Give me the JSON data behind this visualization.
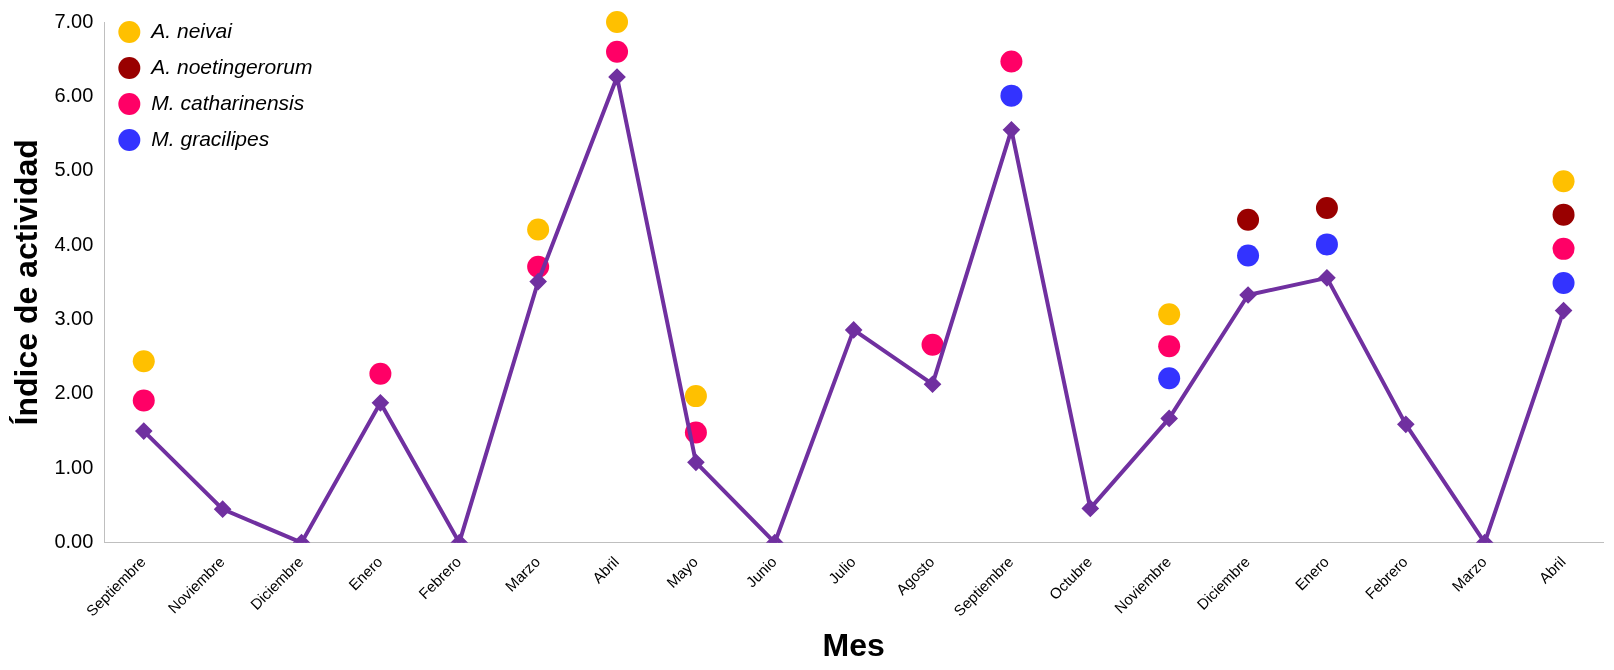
{
  "chart_data": {
    "type": "line",
    "xlabel": "Mes",
    "ylabel": "Índice de actividad",
    "categories": [
      "Septiembre",
      "Noviembre",
      "Diciembre",
      "Enero",
      "Febrero",
      "Marzo",
      "Abril",
      "Mayo",
      "Junio",
      "Julio",
      "Agosto",
      "Septiembre",
      "Octubre",
      "Noviembre",
      "Diciembre",
      "Enero",
      "Febrero",
      "Marzo",
      "Abril"
    ],
    "ylim": [
      0,
      7
    ],
    "yticks": [
      {
        "value": 0,
        "label": "0.00"
      },
      {
        "value": 1,
        "label": "1.00"
      },
      {
        "value": 2,
        "label": "2.00"
      },
      {
        "value": 3,
        "label": "3.00"
      },
      {
        "value": 4,
        "label": "4.00"
      },
      {
        "value": 5,
        "label": "5.00"
      },
      {
        "value": 6,
        "label": "6.00"
      },
      {
        "value": 7,
        "label": "7.00"
      }
    ],
    "grid": false,
    "legend": "top left",
    "line_style": "solid",
    "series": [
      {
        "color": "#7030a0",
        "marker": "diamond",
        "values": [
          1.5,
          0.45,
          0,
          1.88,
          0,
          3.51,
          6.26,
          1.08,
          0,
          2.86,
          2.13,
          5.55,
          0.46,
          1.67,
          3.33,
          3.56,
          1.59,
          0,
          3.12
        ]
      },
      {
        "type": "scatter",
        "name": "A. neivai",
        "color": "#ffc000",
        "marker": "circle",
        "values": [
          2.44,
          null,
          null,
          null,
          null,
          4.21,
          7,
          1.97,
          null,
          null,
          null,
          null,
          null,
          3.07,
          null,
          null,
          null,
          null,
          4.86
        ]
      },
      {
        "type": "scatter",
        "name": "A. noetingerorum",
        "color": "#990000",
        "marker": "circle",
        "values": [
          null,
          null,
          null,
          null,
          null,
          null,
          null,
          null,
          null,
          null,
          null,
          null,
          null,
          null,
          4.34,
          4.5,
          null,
          null,
          4.41
        ]
      },
      {
        "type": "scatter",
        "name": "M. catharinensis",
        "color": "#ff0066",
        "marker": "circle",
        "values": [
          1.91,
          null,
          null,
          2.27,
          null,
          3.71,
          6.6,
          1.48,
          null,
          null,
          2.66,
          6.47,
          null,
          2.64,
          null,
          null,
          null,
          null,
          3.95
        ]
      },
      {
        "type": "scatter",
        "name": "M. gracilipes",
        "color": "#3333ff",
        "marker": "circle",
        "values": [
          null,
          null,
          null,
          null,
          null,
          null,
          null,
          null,
          null,
          null,
          null,
          6.01,
          null,
          2.21,
          3.86,
          4.01,
          null,
          null,
          3.49
        ]
      }
    ]
  }
}
